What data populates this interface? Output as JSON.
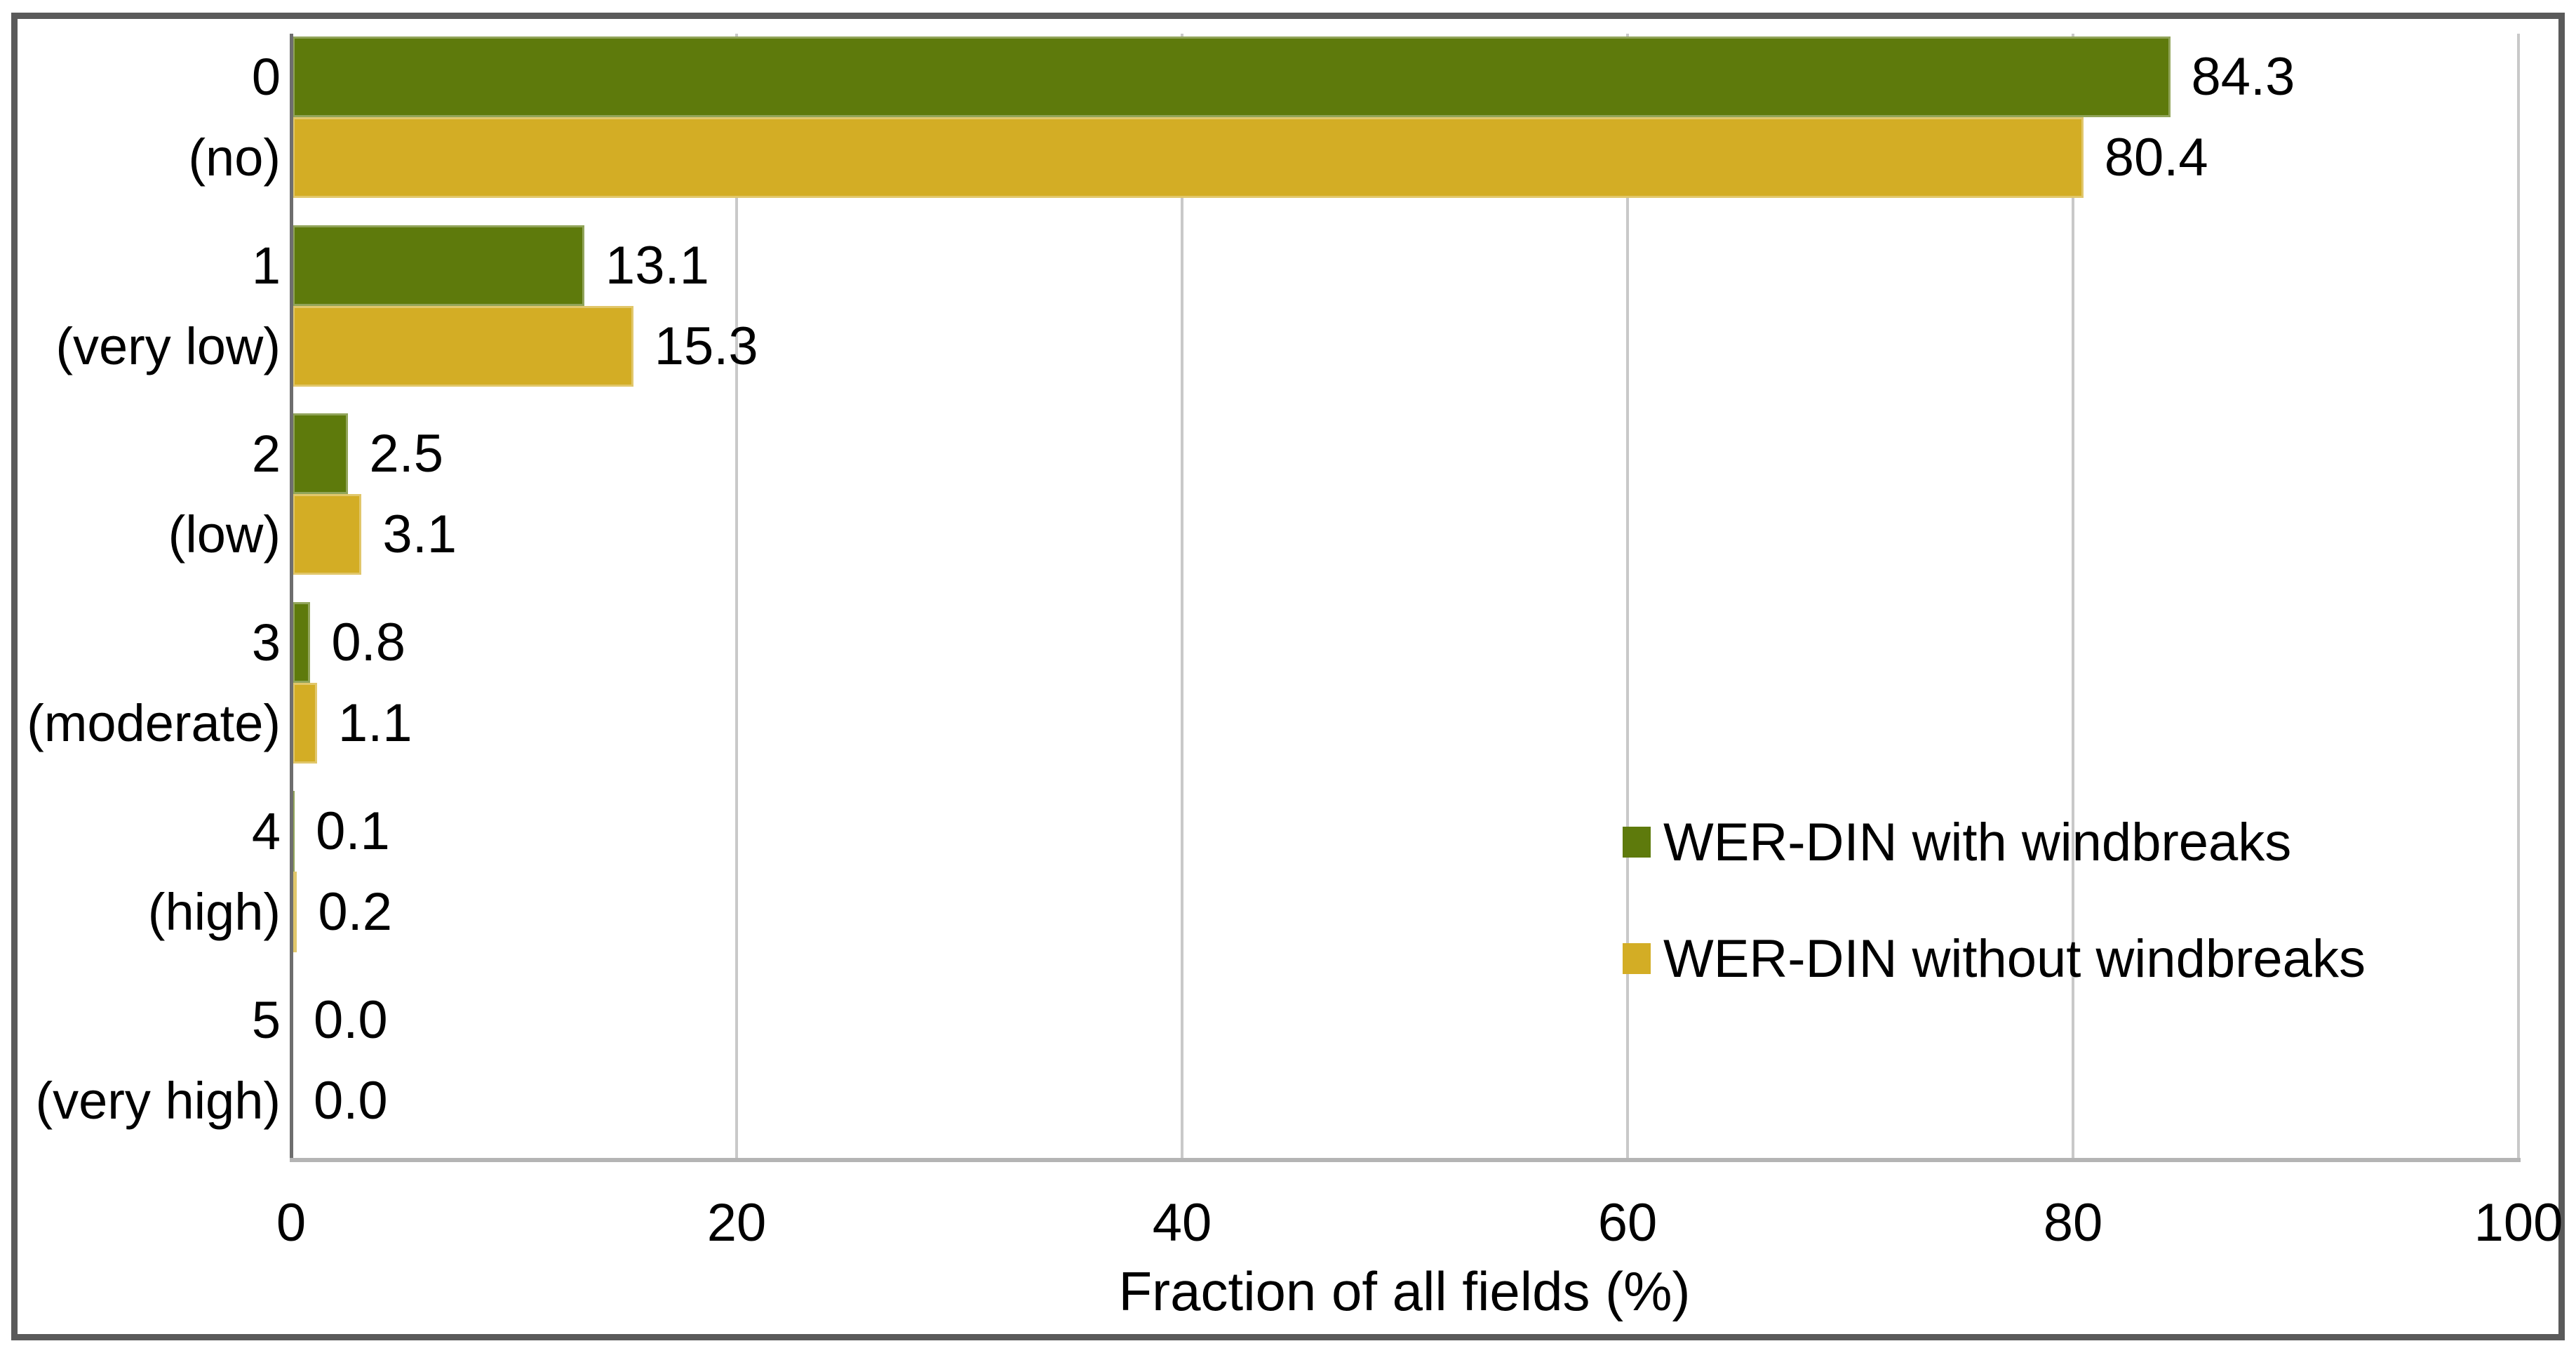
{
  "frame_color": "#5a5a5a",
  "chart_data": {
    "type": "bar",
    "orientation": "horizontal",
    "xlabel": "Fraction of all fields (%)",
    "xlim": [
      0,
      100
    ],
    "xticks": [
      0,
      20,
      40,
      60,
      80,
      100
    ],
    "grid": "vertical",
    "legend_position": "inside-right",
    "value_label_decimals": 1,
    "categories": [
      {
        "code": "0",
        "name": "(no)"
      },
      {
        "code": "1",
        "name": "(very low)"
      },
      {
        "code": "2",
        "name": "(low)"
      },
      {
        "code": "3",
        "name": "(moderate)"
      },
      {
        "code": "4",
        "name": "(high)"
      },
      {
        "code": "5",
        "name": "(very high)"
      }
    ],
    "series": [
      {
        "name": "WER-DIN with windbreaks",
        "color": "#5e7a0c",
        "values": [
          84.3,
          13.1,
          2.5,
          0.8,
          0.1,
          0.0
        ]
      },
      {
        "name": "WER-DIN without windbreaks",
        "color": "#d3ad25",
        "values": [
          80.4,
          15.3,
          3.1,
          1.1,
          0.2,
          0.0
        ]
      }
    ]
  }
}
